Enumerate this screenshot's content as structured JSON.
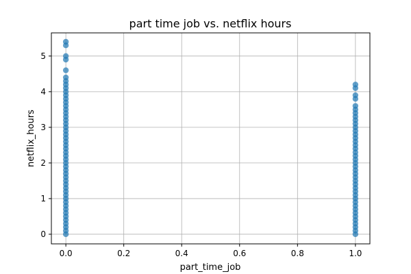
{
  "chart_data": {
    "type": "scatter",
    "title": "part time job vs. netflix hours",
    "xlabel": "part_time_job",
    "ylabel": "netflix_hours",
    "xlim": [
      -0.05,
      1.05
    ],
    "ylim": [
      -0.27,
      5.65
    ],
    "grid": true,
    "x_ticks": [
      0.0,
      0.2,
      0.4,
      0.6,
      0.8,
      1.0
    ],
    "x_tick_labels": [
      "0.0",
      "0.2",
      "0.4",
      "0.6",
      "0.8",
      "1.0"
    ],
    "y_ticks": [
      0,
      1,
      2,
      3,
      4,
      5
    ],
    "y_tick_labels": [
      "0",
      "1",
      "2",
      "3",
      "4",
      "5"
    ],
    "marker_color": "#1f77b4",
    "series": [
      {
        "x": 0,
        "y": [
          0.0,
          0.1,
          0.2,
          0.3,
          0.4,
          0.5,
          0.6,
          0.7,
          0.8,
          0.9,
          1.0,
          1.1,
          1.2,
          1.3,
          1.4,
          1.5,
          1.6,
          1.7,
          1.8,
          1.9,
          2.0,
          2.1,
          2.2,
          2.3,
          2.4,
          2.5,
          2.6,
          2.7,
          2.8,
          2.9,
          3.0,
          3.1,
          3.2,
          3.3,
          3.4,
          3.5,
          3.6,
          3.7,
          3.8,
          3.9,
          4.0,
          4.1,
          4.2,
          4.3,
          4.4,
          4.6,
          4.9,
          5.0,
          5.3,
          5.4
        ]
      },
      {
        "x": 1,
        "y": [
          0.0,
          0.1,
          0.2,
          0.3,
          0.4,
          0.5,
          0.6,
          0.7,
          0.8,
          0.9,
          1.0,
          1.1,
          1.2,
          1.3,
          1.4,
          1.5,
          1.6,
          1.7,
          1.8,
          1.9,
          2.0,
          2.1,
          2.2,
          2.3,
          2.4,
          2.5,
          2.6,
          2.7,
          2.8,
          2.9,
          3.0,
          3.1,
          3.2,
          3.3,
          3.4,
          3.5,
          3.6,
          3.8,
          3.9,
          4.1,
          4.2
        ]
      }
    ]
  }
}
